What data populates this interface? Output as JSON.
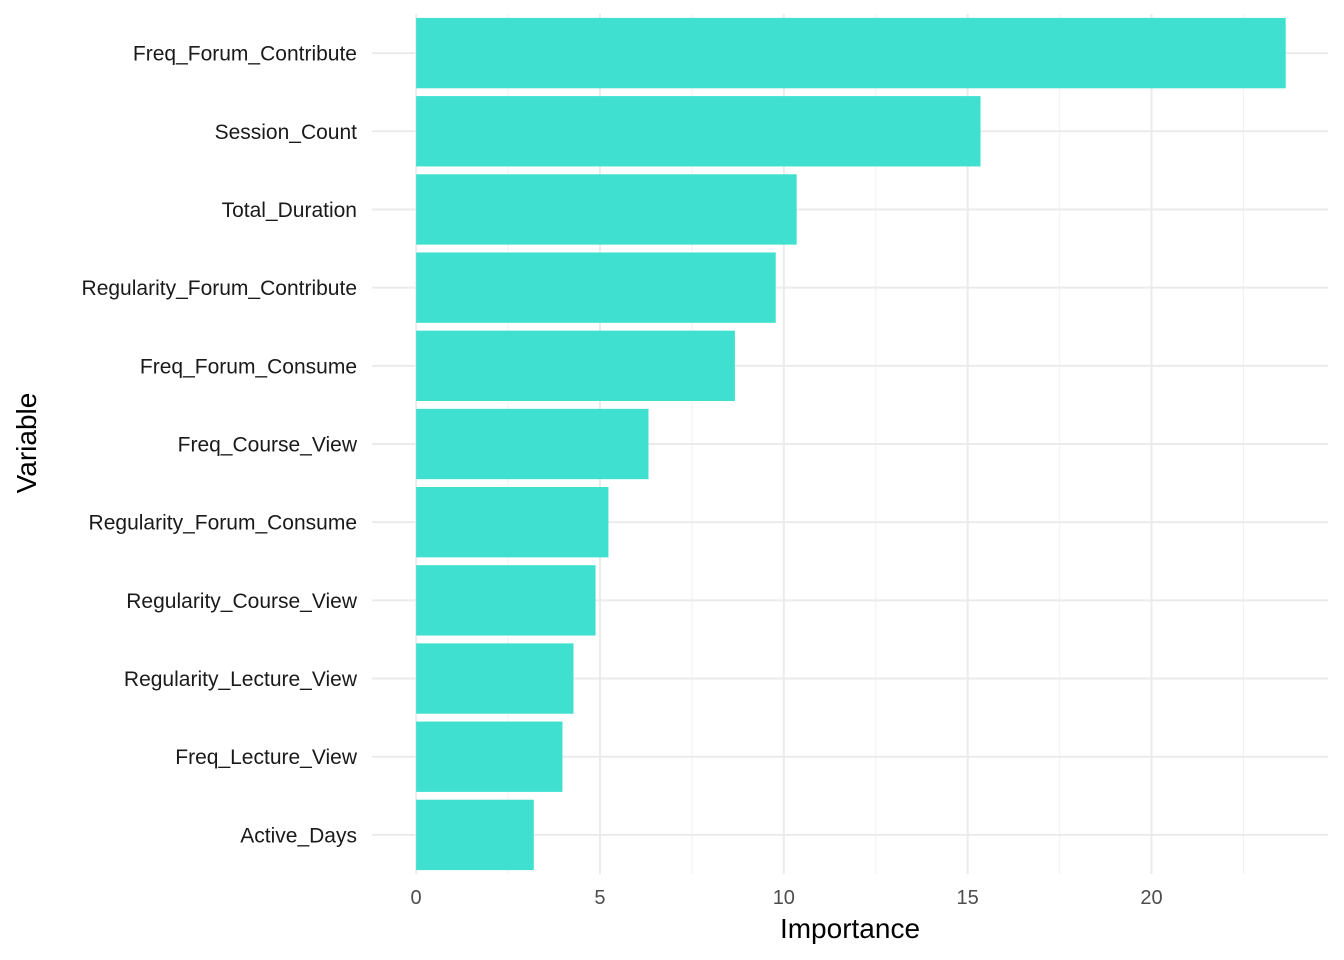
{
  "chart_data": {
    "type": "bar",
    "orientation": "horizontal",
    "xlabel": "Importance",
    "ylabel": "Variable",
    "categories": [
      "Freq_Forum_Contribute",
      "Session_Count",
      "Total_Duration",
      "Regularity_Forum_Contribute",
      "Freq_Forum_Consume",
      "Freq_Course_View",
      "Regularity_Forum_Consume",
      "Regularity_Course_View",
      "Regularity_Lecture_View",
      "Freq_Lecture_View",
      "Active_Days"
    ],
    "values": [
      23.65,
      15.35,
      10.35,
      9.78,
      8.67,
      6.32,
      5.23,
      4.88,
      4.28,
      3.98,
      3.2
    ],
    "xlim": [
      -1.2,
      24.8
    ],
    "xticks": [
      0,
      5,
      10,
      15,
      20
    ],
    "xtick_labels": [
      "0",
      "5",
      "10",
      "15",
      "20"
    ],
    "grid": true,
    "bar_color": "#40e0d0",
    "background": "#ffffff"
  }
}
